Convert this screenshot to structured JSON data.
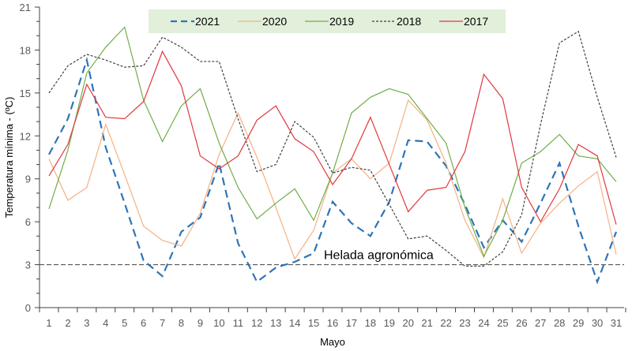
{
  "chart_data": {
    "type": "line",
    "title": "",
    "xlabel": "Mayo",
    "ylabel": "Temperatura mínima - (ºC)",
    "ylim": [
      0,
      21
    ],
    "yticks": [
      0,
      3,
      6,
      9,
      12,
      15,
      18,
      21
    ],
    "xlim": [
      1,
      31
    ],
    "x": [
      1,
      2,
      3,
      4,
      5,
      6,
      7,
      8,
      9,
      10,
      11,
      12,
      13,
      14,
      15,
      16,
      17,
      18,
      19,
      20,
      21,
      22,
      23,
      24,
      25,
      26,
      27,
      28,
      29,
      30,
      31
    ],
    "grid": false,
    "legend_position": "top-center",
    "series": [
      {
        "name": "2021",
        "color": "#2E75B6",
        "style": "dashed",
        "values": [
          10.7,
          13.2,
          17.3,
          11.2,
          7.3,
          3.3,
          2.2,
          5.3,
          6.3,
          10.1,
          4.5,
          1.8,
          2.8,
          3.2,
          3.8,
          7.4,
          5.9,
          5.0,
          7.4,
          11.7,
          11.6,
          9.9,
          7.2,
          4.2,
          6.1,
          4.6,
          7.3,
          10.1,
          5.7,
          1.8,
          5.3
        ]
      },
      {
        "name": "2020",
        "color": "#F4B183",
        "style": "solid",
        "values": [
          10.4,
          7.5,
          8.4,
          12.8,
          9.3,
          5.7,
          4.7,
          4.3,
          6.6,
          10.7,
          13.6,
          10.5,
          7.0,
          3.4,
          5.4,
          9.4,
          10.4,
          9.0,
          10.1,
          14.5,
          13.1,
          10.1,
          6.1,
          3.5,
          7.6,
          3.8,
          5.9,
          7.3,
          8.5,
          9.5,
          3.7
        ]
      },
      {
        "name": "2019",
        "color": "#70AD47",
        "style": "solid",
        "values": [
          6.9,
          11.0,
          16.4,
          18.2,
          19.6,
          14.5,
          11.6,
          14.1,
          15.3,
          11.5,
          8.4,
          6.2,
          7.3,
          8.3,
          6.1,
          9.4,
          13.6,
          14.7,
          15.3,
          14.9,
          13.2,
          11.5,
          7.0,
          3.6,
          6.1,
          10.1,
          10.9,
          12.1,
          10.6,
          10.4,
          8.8
        ]
      },
      {
        "name": "2018",
        "color": "#404040",
        "style": "dotted",
        "values": [
          15.0,
          16.9,
          17.7,
          17.3,
          16.8,
          16.9,
          18.9,
          18.2,
          17.2,
          17.2,
          13.2,
          9.5,
          10.0,
          13.0,
          11.9,
          9.4,
          9.8,
          9.6,
          7.2,
          4.8,
          5.0,
          4.0,
          2.9,
          2.9,
          3.9,
          6.5,
          12.8,
          18.5,
          19.3,
          14.7,
          10.5
        ]
      },
      {
        "name": "2017",
        "color": "#E0383E",
        "style": "solid",
        "values": [
          9.2,
          11.4,
          15.6,
          13.3,
          13.2,
          14.4,
          17.9,
          15.5,
          10.6,
          9.7,
          10.6,
          13.1,
          14.1,
          11.8,
          10.9,
          8.6,
          10.4,
          13.3,
          10.0,
          6.7,
          8.2,
          8.4,
          10.9,
          16.3,
          14.6,
          8.4,
          6.0,
          8.3,
          11.4,
          10.6,
          5.8
        ]
      }
    ],
    "annotations": [
      {
        "text": "Helada agronómica",
        "y": 3,
        "style": "dashed-reference-line"
      }
    ]
  }
}
